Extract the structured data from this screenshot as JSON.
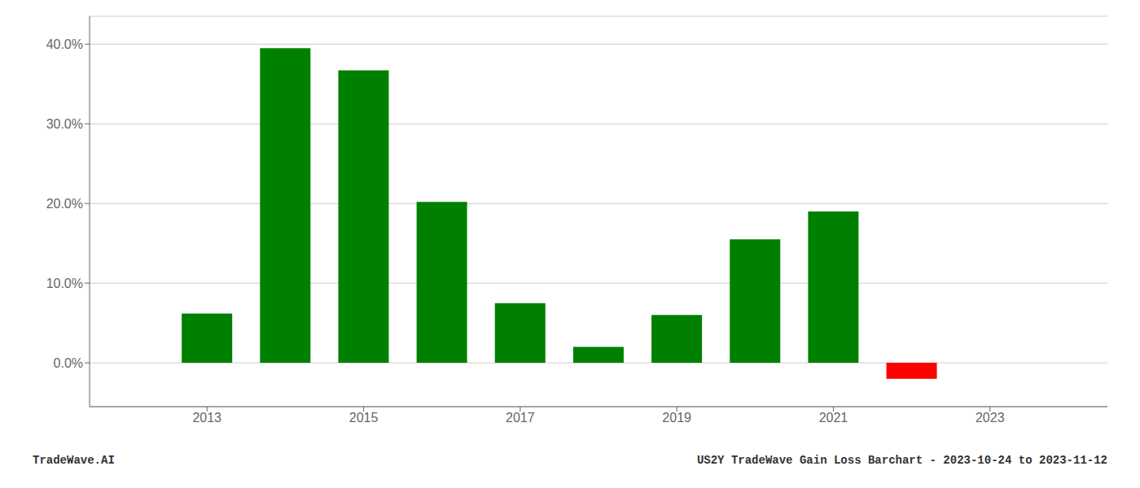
{
  "chart_data": {
    "type": "bar",
    "x": [
      2013,
      2014,
      2015,
      2016,
      2017,
      2018,
      2019,
      2020,
      2021,
      2022
    ],
    "values": [
      0.062,
      0.395,
      0.367,
      0.202,
      0.075,
      0.02,
      0.06,
      0.155,
      0.19,
      -0.02
    ],
    "colors": [
      "#008000",
      "#008000",
      "#008000",
      "#008000",
      "#008000",
      "#008000",
      "#008000",
      "#008000",
      "#008000",
      "#ff0000"
    ],
    "xlim": [
      2011.5,
      2024.5
    ],
    "xticks": [
      2013,
      2015,
      2017,
      2019,
      2021,
      2023
    ],
    "ylim": [
      -0.055,
      0.435
    ],
    "yticks": [
      {
        "value": 0.0,
        "label": "0.0%"
      },
      {
        "value": 0.1,
        "label": "10.0%"
      },
      {
        "value": 0.2,
        "label": "20.0%"
      },
      {
        "value": 0.3,
        "label": "30.0%"
      },
      {
        "value": 0.4,
        "label": "40.0%"
      }
    ],
    "grid": "y",
    "annotations": [
      "TradeWave.AI",
      "US2Y TradeWave Gain Loss Barchart - 2023-10-24 to 2023-11-12"
    ]
  }
}
